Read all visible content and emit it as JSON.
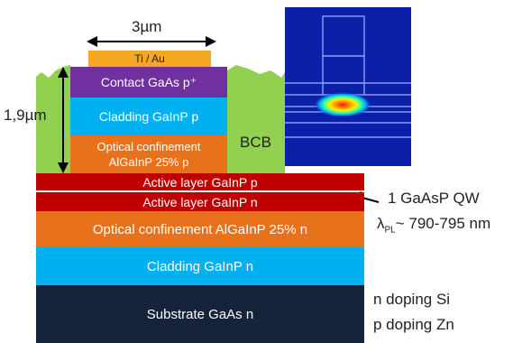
{
  "layers": {
    "contact_metal": "Ti / Au",
    "contact": "Contact  GaAs  p⁺",
    "upper_cladding": "Cladding  GaInP  p",
    "upper_confinement_line1": "Optical confinement",
    "upper_confinement_line2": "AlGaInP 25% p",
    "active_p": "Active layer  GaInP  p",
    "active_n": "Active layer  GaInP  n",
    "lower_confinement": "Optical confinement  AlGaInP 25%  n",
    "lower_cladding": "Cladding  GaInP  n",
    "substrate": "Substrate GaAs  n"
  },
  "labels": {
    "width": "3µm",
    "height": "1,9µm",
    "bcb": "BCB",
    "qw": "1 GaAsP QW",
    "lambda_symbol": "λ",
    "lambda_subscript": "PL",
    "lambda_value": "~ 790-795 nm",
    "n_doping": "n doping Si",
    "p_doping": "p doping Zn"
  },
  "colors": {
    "contact_metal": "#f5a623",
    "contact": "#7030a0",
    "cladding": "#00b0f0",
    "confinement": "#e8711c",
    "active": "#c00000",
    "substrate": "#15233b",
    "bcb": "#92d050",
    "mode_background": "#0b1fa8"
  }
}
